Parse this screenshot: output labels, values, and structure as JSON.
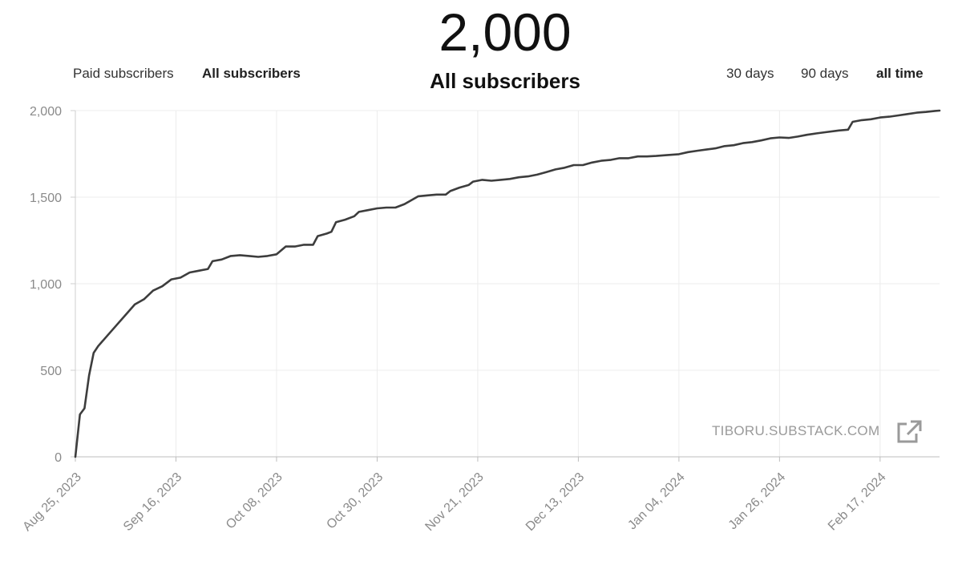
{
  "header": {
    "total": "2,000",
    "title": "All subscribers"
  },
  "filters": {
    "paid": "Paid subscribers",
    "all": "All subscribers",
    "active": "all"
  },
  "ranges": {
    "d30": "30 days",
    "d90": "90 days",
    "all": "all time",
    "active": "all time"
  },
  "watermark": "TIBORU.SUBSTACK.COM",
  "icons": {
    "external_link": "external-link-icon"
  },
  "chart_data": {
    "type": "line",
    "title": "All subscribers",
    "xlabel": "",
    "ylabel": "",
    "ylim": [
      0,
      2000
    ],
    "xlim": [
      "2023-08-25",
      "2024-03-01"
    ],
    "yticks": [
      0,
      500,
      1000,
      1500,
      2000
    ],
    "ytick_labels": [
      "0",
      "500",
      "1,000",
      "1,500",
      "2,000"
    ],
    "xticks": [
      "2023-08-25",
      "2023-09-16",
      "2023-10-08",
      "2023-10-30",
      "2023-11-21",
      "2023-12-13",
      "2024-01-04",
      "2024-01-26",
      "2024-02-17"
    ],
    "xtick_labels": [
      "Aug 25, 2023",
      "Sep 16, 2023",
      "Oct 08, 2023",
      "Oct 30, 2023",
      "Nov 21, 2023",
      "Dec 13, 2023",
      "Jan 04, 2024",
      "Jan 26, 2024",
      "Feb 17, 2024"
    ],
    "grid": true,
    "line_color": "#3d3d3d",
    "series": [
      {
        "points": [
          [
            "2023-08-25",
            0
          ],
          [
            "2023-08-26",
            245
          ],
          [
            "2023-08-27",
            280
          ],
          [
            "2023-08-28",
            470
          ],
          [
            "2023-08-29",
            600
          ],
          [
            "2023-08-30",
            640
          ],
          [
            "2023-09-01",
            700
          ],
          [
            "2023-09-03",
            760
          ],
          [
            "2023-09-05",
            820
          ],
          [
            "2023-09-07",
            880
          ],
          [
            "2023-09-09",
            910
          ],
          [
            "2023-09-11",
            960
          ],
          [
            "2023-09-13",
            985
          ],
          [
            "2023-09-15",
            1025
          ],
          [
            "2023-09-17",
            1035
          ],
          [
            "2023-09-19",
            1065
          ],
          [
            "2023-09-21",
            1075
          ],
          [
            "2023-09-23",
            1085
          ],
          [
            "2023-09-24",
            1130
          ],
          [
            "2023-09-26",
            1140
          ],
          [
            "2023-09-28",
            1160
          ],
          [
            "2023-09-30",
            1165
          ],
          [
            "2023-10-02",
            1160
          ],
          [
            "2023-10-04",
            1155
          ],
          [
            "2023-10-06",
            1160
          ],
          [
            "2023-10-08",
            1170
          ],
          [
            "2023-10-10",
            1215
          ],
          [
            "2023-10-12",
            1215
          ],
          [
            "2023-10-14",
            1225
          ],
          [
            "2023-10-16",
            1225
          ],
          [
            "2023-10-17",
            1275
          ],
          [
            "2023-10-19",
            1290
          ],
          [
            "2023-10-20",
            1300
          ],
          [
            "2023-10-21",
            1355
          ],
          [
            "2023-10-23",
            1370
          ],
          [
            "2023-10-25",
            1390
          ],
          [
            "2023-10-26",
            1415
          ],
          [
            "2023-10-28",
            1425
          ],
          [
            "2023-10-30",
            1435
          ],
          [
            "2023-11-01",
            1440
          ],
          [
            "2023-11-03",
            1440
          ],
          [
            "2023-11-05",
            1460
          ],
          [
            "2023-11-08",
            1505
          ],
          [
            "2023-11-10",
            1510
          ],
          [
            "2023-11-12",
            1515
          ],
          [
            "2023-11-14",
            1515
          ],
          [
            "2023-11-15",
            1535
          ],
          [
            "2023-11-17",
            1555
          ],
          [
            "2023-11-19",
            1570
          ],
          [
            "2023-11-20",
            1590
          ],
          [
            "2023-11-22",
            1600
          ],
          [
            "2023-11-24",
            1595
          ],
          [
            "2023-11-26",
            1600
          ],
          [
            "2023-11-28",
            1605
          ],
          [
            "2023-11-30",
            1615
          ],
          [
            "2023-12-02",
            1620
          ],
          [
            "2023-12-04",
            1630
          ],
          [
            "2023-12-06",
            1645
          ],
          [
            "2023-12-08",
            1660
          ],
          [
            "2023-12-10",
            1670
          ],
          [
            "2023-12-12",
            1685
          ],
          [
            "2023-12-14",
            1685
          ],
          [
            "2023-12-16",
            1700
          ],
          [
            "2023-12-18",
            1710
          ],
          [
            "2023-12-20",
            1715
          ],
          [
            "2023-12-22",
            1725
          ],
          [
            "2023-12-24",
            1725
          ],
          [
            "2023-12-26",
            1735
          ],
          [
            "2023-12-28",
            1735
          ],
          [
            "2023-12-30",
            1738
          ],
          [
            "2024-01-01",
            1742
          ],
          [
            "2024-01-04",
            1748
          ],
          [
            "2024-01-06",
            1760
          ],
          [
            "2024-01-08",
            1768
          ],
          [
            "2024-01-10",
            1775
          ],
          [
            "2024-01-12",
            1782
          ],
          [
            "2024-01-14",
            1795
          ],
          [
            "2024-01-16",
            1800
          ],
          [
            "2024-01-18",
            1812
          ],
          [
            "2024-01-20",
            1818
          ],
          [
            "2024-01-22",
            1828
          ],
          [
            "2024-01-24",
            1840
          ],
          [
            "2024-01-26",
            1845
          ],
          [
            "2024-01-28",
            1842
          ],
          [
            "2024-01-30",
            1850
          ],
          [
            "2024-02-01",
            1860
          ],
          [
            "2024-02-03",
            1868
          ],
          [
            "2024-02-05",
            1875
          ],
          [
            "2024-02-08",
            1885
          ],
          [
            "2024-02-10",
            1890
          ],
          [
            "2024-02-11",
            1935
          ],
          [
            "2024-02-13",
            1945
          ],
          [
            "2024-02-15",
            1950
          ],
          [
            "2024-02-17",
            1960
          ],
          [
            "2024-02-19",
            1965
          ],
          [
            "2024-02-21",
            1972
          ],
          [
            "2024-02-23",
            1980
          ],
          [
            "2024-02-25",
            1988
          ],
          [
            "2024-02-27",
            1992
          ],
          [
            "2024-02-29",
            1998
          ],
          [
            "2024-03-01",
            2000
          ]
        ]
      }
    ]
  }
}
